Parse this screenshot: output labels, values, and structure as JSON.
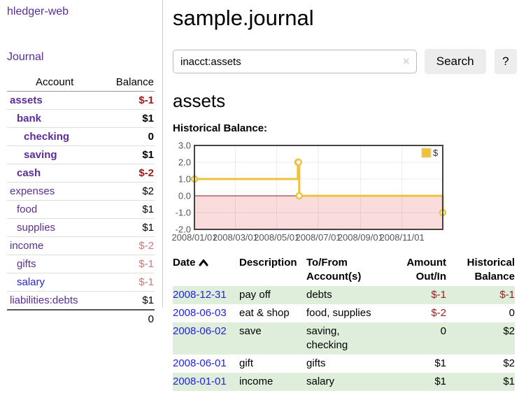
{
  "app": {
    "brand": "hledger-web",
    "nav_journal": "Journal"
  },
  "sidebar": {
    "header": {
      "account": "Account",
      "balance": "Balance"
    },
    "accounts": [
      {
        "name": "assets",
        "level": 1,
        "bold": true,
        "balance": "$-1"
      },
      {
        "name": "bank",
        "level": 2,
        "bold": true,
        "balance": "$1"
      },
      {
        "name": "checking",
        "level": 3,
        "bold": true,
        "balance": "0"
      },
      {
        "name": "saving",
        "level": 3,
        "bold": true,
        "balance": "$1"
      },
      {
        "name": "cash",
        "level": 2,
        "bold": true,
        "balance": "$-2"
      },
      {
        "name": "expenses",
        "level": 1,
        "bold": false,
        "balance": "$2"
      },
      {
        "name": "food",
        "level": 2,
        "bold": false,
        "balance": "$1"
      },
      {
        "name": "supplies",
        "level": 2,
        "bold": false,
        "balance": "$1"
      },
      {
        "name": "income",
        "level": 1,
        "bold": false,
        "balance": "$-2"
      },
      {
        "name": "gifts",
        "level": 2,
        "bold": false,
        "balance": "$-1"
      },
      {
        "name": "salary",
        "level": 2,
        "bold": false,
        "balance": "$-1",
        "blue": true
      },
      {
        "name": "liabilities:debts",
        "level": 1,
        "bold": false,
        "balance": "$1"
      }
    ],
    "total": "0"
  },
  "header": {
    "title": "sample.journal"
  },
  "search": {
    "value": "inacct:assets",
    "clear_icon": "×",
    "button": "Search",
    "help_button": "?"
  },
  "account_page": {
    "heading": "assets",
    "chart_label": "Historical Balance:"
  },
  "chart_data": {
    "type": "line",
    "title": "Historical Balance",
    "steps": true,
    "xlim": [
      "2008-01-01",
      "2008-12-31"
    ],
    "ylim": [
      -2,
      3
    ],
    "y_ticks": [
      "3.0",
      "2.0",
      "1.0",
      "0.0",
      "-1.0",
      "-2.0"
    ],
    "x_ticks": [
      "2008/01/01",
      "2008/03/01",
      "2008/05/01",
      "2008/07/01",
      "2008/09/01",
      "2008/11/01"
    ],
    "series": [
      {
        "name": "$",
        "color": "#edc240",
        "points": [
          [
            "2008-01-01",
            1
          ],
          [
            "2008-06-01",
            2
          ],
          [
            "2008-06-02",
            2
          ],
          [
            "2008-06-03",
            0
          ],
          [
            "2008-12-31",
            -1
          ]
        ]
      }
    ],
    "legend": {
      "label": "$",
      "position": "top-right"
    },
    "grid": true,
    "negative_region_color": "#fbdcdc",
    "zero_line_color": "#8b1a1a",
    "axis_text_color": "#555555",
    "border_color": "#444444"
  },
  "register": {
    "columns": [
      {
        "line1": "Date",
        "line2": "",
        "sorted": "asc"
      },
      {
        "line1": "Description",
        "line2": ""
      },
      {
        "line1": "To/From",
        "line2": "Account(s)"
      },
      {
        "line1": "Amount",
        "line2": "Out/In",
        "align": "right"
      },
      {
        "line1": "Historical",
        "line2": "Balance",
        "align": "right"
      }
    ],
    "rows": [
      {
        "date": "2008-12-31",
        "description": "pay off",
        "accounts": "debts",
        "amount": "$-1",
        "balance": "$-1"
      },
      {
        "date": "2008-06-03",
        "description": "eat & shop",
        "accounts": "food, supplies",
        "amount": "$-2",
        "balance": "0"
      },
      {
        "date": "2008-06-02",
        "description": "save",
        "accounts": "saving, checking",
        "amount": "0",
        "balance": "$2"
      },
      {
        "date": "2008-06-01",
        "description": "gift",
        "accounts": "gifts",
        "amount": "$1",
        "balance": "$2"
      },
      {
        "date": "2008-01-01",
        "description": "income",
        "accounts": "salary",
        "amount": "$1",
        "balance": "$1"
      }
    ]
  }
}
